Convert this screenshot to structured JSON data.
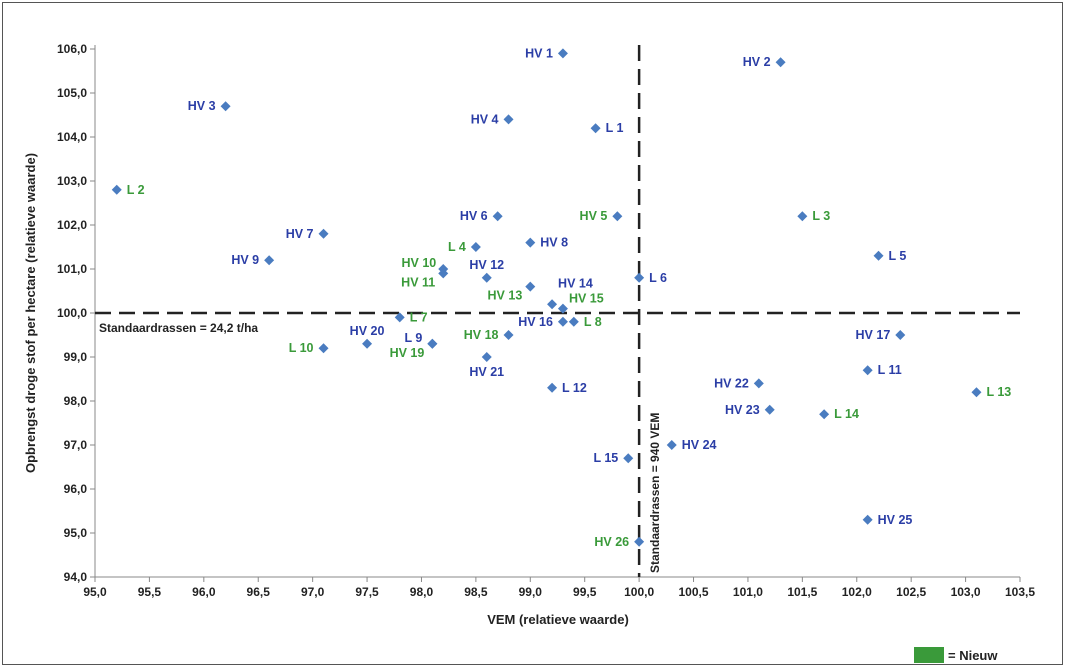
{
  "chart_data": {
    "type": "scatter",
    "xlabel": "VEM (relatieve waarde)",
    "ylabel": "Opbrengst droge stof per hectare (relatieve waarde)",
    "xlim": [
      95.0,
      103.5
    ],
    "ylim": [
      94.0,
      106.0
    ],
    "xticks": [
      "95,0",
      "95,5",
      "96,0",
      "96,5",
      "97,0",
      "97,5",
      "98,0",
      "98,5",
      "99,0",
      "99,5",
      "100,0",
      "100,5",
      "101,0",
      "101,5",
      "102,0",
      "102,5",
      "103,0",
      "103,5"
    ],
    "yticks": [
      "94,0",
      "95,0",
      "96,0",
      "97,0",
      "98,0",
      "99,0",
      "100,0",
      "101,0",
      "102,0",
      "103,0",
      "104,0",
      "105,0",
      "106,0"
    ],
    "grid": false,
    "reference_lines": [
      {
        "axis": "y",
        "value": 100.0,
        "label": "Standaardrassen = 24,2 t/ha"
      },
      {
        "axis": "x",
        "value": 100.0,
        "label": "Standaardrassen = 940 VEM"
      }
    ],
    "legend": {
      "label": "= Nieuw",
      "color": "#3a9a3a",
      "placement": "bottom-right"
    },
    "colors": {
      "marker": "#4a7cc0",
      "existing": "#2b3ea6",
      "new": "#3a9a3a"
    },
    "points": [
      {
        "name": "HV 1",
        "x": 99.3,
        "y": 105.9,
        "new": false,
        "label": "left"
      },
      {
        "name": "HV 2",
        "x": 101.3,
        "y": 105.7,
        "new": false,
        "label": "left"
      },
      {
        "name": "HV 3",
        "x": 96.2,
        "y": 104.7,
        "new": false,
        "label": "left"
      },
      {
        "name": "HV 4",
        "x": 98.8,
        "y": 104.4,
        "new": false,
        "label": "left"
      },
      {
        "name": "L 1",
        "x": 99.6,
        "y": 104.2,
        "new": false,
        "label": "right"
      },
      {
        "name": "L 2",
        "x": 95.2,
        "y": 102.8,
        "new": true,
        "label": "right"
      },
      {
        "name": "HV 6",
        "x": 98.7,
        "y": 102.2,
        "new": false,
        "label": "left"
      },
      {
        "name": "HV 5",
        "x": 99.8,
        "y": 102.2,
        "new": true,
        "label": "left"
      },
      {
        "name": "L 3",
        "x": 101.5,
        "y": 102.2,
        "new": true,
        "label": "right"
      },
      {
        "name": "HV 7",
        "x": 97.1,
        "y": 101.8,
        "new": false,
        "label": "left"
      },
      {
        "name": "L 4",
        "x": 98.5,
        "y": 101.5,
        "new": true,
        "label": "left"
      },
      {
        "name": "HV 8",
        "x": 99.0,
        "y": 101.6,
        "new": false,
        "label": "right"
      },
      {
        "name": "HV 9",
        "x": 96.6,
        "y": 101.2,
        "new": false,
        "label": "left"
      },
      {
        "name": "HV 10",
        "x": 98.2,
        "y": 101.0,
        "new": true,
        "label": "above-left"
      },
      {
        "name": "HV 11",
        "x": 98.2,
        "y": 100.9,
        "new": true,
        "label": "below-left"
      },
      {
        "name": "HV 12",
        "x": 98.6,
        "y": 100.8,
        "new": false,
        "label": "above"
      },
      {
        "name": "L 5",
        "x": 102.2,
        "y": 101.3,
        "new": false,
        "label": "right"
      },
      {
        "name": "L 6",
        "x": 100.0,
        "y": 100.8,
        "new": false,
        "label": "right"
      },
      {
        "name": "HV 13",
        "x": 99.0,
        "y": 100.6,
        "new": true,
        "label": "below-left"
      },
      {
        "name": "HV 14",
        "x": 99.2,
        "y": 100.2,
        "new": false,
        "label": "above-right"
      },
      {
        "name": "HV 15",
        "x": 99.3,
        "y": 100.1,
        "new": true,
        "label": "above-right"
      },
      {
        "name": "L 7",
        "x": 97.8,
        "y": 99.9,
        "new": true,
        "label": "right"
      },
      {
        "name": "HV 16",
        "x": 99.3,
        "y": 99.8,
        "new": false,
        "label": "left"
      },
      {
        "name": "L 8",
        "x": 99.4,
        "y": 99.8,
        "new": true,
        "label": "right"
      },
      {
        "name": "HV 18",
        "x": 98.8,
        "y": 99.5,
        "new": true,
        "label": "left"
      },
      {
        "name": "HV 17",
        "x": 102.4,
        "y": 99.5,
        "new": false,
        "label": "left"
      },
      {
        "name": "HV 20",
        "x": 97.5,
        "y": 99.3,
        "new": false,
        "label": "above"
      },
      {
        "name": "L 9",
        "x": 98.1,
        "y": 99.3,
        "new": false,
        "label": "left"
      },
      {
        "name": "HV 19",
        "x": 98.1,
        "y": 99.3,
        "new": true,
        "label": "below-left"
      },
      {
        "name": "L 10",
        "x": 97.1,
        "y": 99.2,
        "new": true,
        "label": "left"
      },
      {
        "name": "HV 21",
        "x": 98.6,
        "y": 99.0,
        "new": false,
        "label": "below"
      },
      {
        "name": "L 12",
        "x": 99.2,
        "y": 98.3,
        "new": false,
        "label": "right"
      },
      {
        "name": "HV 22",
        "x": 101.1,
        "y": 98.4,
        "new": false,
        "label": "left"
      },
      {
        "name": "L 11",
        "x": 102.1,
        "y": 98.7,
        "new": false,
        "label": "right"
      },
      {
        "name": "L 13",
        "x": 103.1,
        "y": 98.2,
        "new": true,
        "label": "right"
      },
      {
        "name": "HV 23",
        "x": 101.2,
        "y": 97.8,
        "new": false,
        "label": "left"
      },
      {
        "name": "L 14",
        "x": 101.7,
        "y": 97.7,
        "new": true,
        "label": "right"
      },
      {
        "name": "HV 24",
        "x": 100.3,
        "y": 97.0,
        "new": false,
        "label": "right"
      },
      {
        "name": "L 15",
        "x": 99.9,
        "y": 96.7,
        "new": false,
        "label": "left"
      },
      {
        "name": "HV 25",
        "x": 102.1,
        "y": 95.3,
        "new": false,
        "label": "right"
      },
      {
        "name": "HV 26",
        "x": 100.0,
        "y": 94.8,
        "new": true,
        "label": "left"
      }
    ]
  }
}
